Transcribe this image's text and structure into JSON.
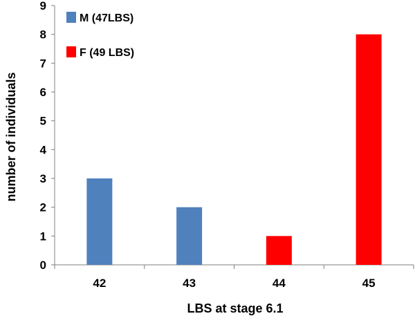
{
  "chart_data": {
    "type": "bar",
    "categories": [
      "42",
      "43",
      "44",
      "45"
    ],
    "series": [
      {
        "name": "M (47LBS)",
        "values": [
          3,
          2,
          0,
          0
        ],
        "color": "#4F81BD"
      },
      {
        "name": "F (49 LBS)",
        "values": [
          0,
          0,
          1,
          8
        ],
        "color": "#FF0000"
      }
    ],
    "xlabel": "LBS at stage 6.1",
    "ylabel": "number of individuals",
    "ylim": [
      0,
      9
    ],
    "yticks": [
      "0",
      "1",
      "2",
      "3",
      "4",
      "5",
      "6",
      "7",
      "8",
      "9"
    ],
    "grid": false,
    "legend_position": "top-left"
  }
}
